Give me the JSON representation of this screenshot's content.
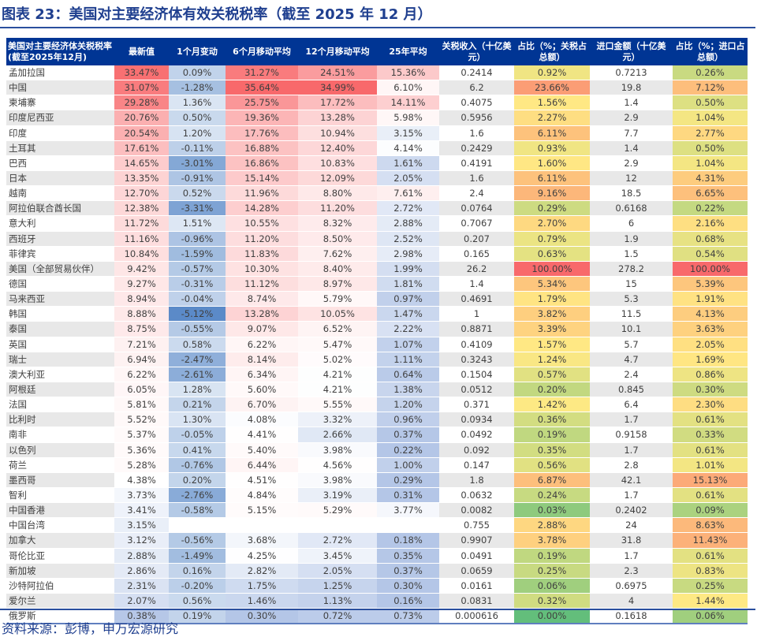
{
  "title": "图表 23：美国对主要经济体有效关税税率（截至 2025 年 12 月）",
  "source": "资料来源：彭博，申万宏源研究",
  "headers": [
    "美国对主要经济体关税税率(截至2025年12月)",
    "最新值",
    "1个月变动",
    "6个月移动平均",
    "12个月移动平均",
    "25年平均",
    "关税收入（十亿美元）",
    "占比（%；关税占总额）",
    "进口金额（十亿美元）",
    "占比（%；进口占总额）"
  ],
  "colors": {
    "header": "#003594",
    "red": "#f8696b",
    "blue": "#5b8ac8",
    "green": "#63be7b",
    "yellow": "#ffe984"
  },
  "rows": [
    [
      "孟加拉国",
      "33.47%",
      "0.09%",
      "31.27%",
      "24.51%",
      "15.36%",
      "0.2414",
      "0.92%",
      "0.7213",
      "0.26%"
    ],
    [
      "中国",
      "31.07%",
      "-1.28%",
      "35.64%",
      "34.99%",
      "6.10%",
      "6.2",
      "23.66%",
      "19.8",
      "7.12%"
    ],
    [
      "柬埔寨",
      "29.28%",
      "1.36%",
      "25.75%",
      "17.72%",
      "14.11%",
      "0.4075",
      "1.56%",
      "1.4",
      "0.50%"
    ],
    [
      "印度尼西亚",
      "20.76%",
      "0.50%",
      "19.36%",
      "13.28%",
      "5.98%",
      "0.5956",
      "2.27%",
      "2.9",
      "1.04%"
    ],
    [
      "印度",
      "20.54%",
      "1.20%",
      "17.76%",
      "10.94%",
      "3.15%",
      "1.6",
      "6.11%",
      "7.7",
      "2.77%"
    ],
    [
      "土耳其",
      "17.61%",
      "-0.11%",
      "16.88%",
      "12.40%",
      "4.14%",
      "0.2429",
      "0.93%",
      "1.4",
      "0.50%"
    ],
    [
      "巴西",
      "14.65%",
      "-3.01%",
      "16.86%",
      "10.83%",
      "1.61%",
      "0.4191",
      "1.60%",
      "2.9",
      "1.04%"
    ],
    [
      "日本",
      "13.35%",
      "-0.91%",
      "15.14%",
      "12.09%",
      "2.05%",
      "1.6",
      "6.11%",
      "12",
      "4.31%"
    ],
    [
      "越南",
      "12.70%",
      "0.52%",
      "11.96%",
      "8.80%",
      "7.61%",
      "2.4",
      "9.16%",
      "18.5",
      "6.65%"
    ],
    [
      "阿拉伯联合酋长国",
      "12.38%",
      "-3.31%",
      "14.28%",
      "11.20%",
      "2.72%",
      "0.0764",
      "0.29%",
      "0.6168",
      "0.22%"
    ],
    [
      "意大利",
      "11.72%",
      "1.51%",
      "10.55%",
      "8.32%",
      "2.88%",
      "0.7067",
      "2.70%",
      "6",
      "2.16%"
    ],
    [
      "西班牙",
      "11.16%",
      "-0.96%",
      "11.20%",
      "8.50%",
      "2.52%",
      "0.207",
      "0.79%",
      "1.9",
      "0.68%"
    ],
    [
      "菲律宾",
      "10.84%",
      "-1.59%",
      "11.83%",
      "7.62%",
      "2.98%",
      "0.165",
      "0.63%",
      "1.5",
      "0.54%"
    ],
    [
      "美国（全部贸易伙伴）",
      "9.42%",
      "-0.57%",
      "10.30%",
      "8.40%",
      "1.99%",
      "26.2",
      "100.00%",
      "278.2",
      "100.00%"
    ],
    [
      "德国",
      "9.27%",
      "-0.31%",
      "11.12%",
      "8.97%",
      "1.81%",
      "1.4",
      "5.34%",
      "15",
      "5.39%"
    ],
    [
      "马来西亚",
      "8.94%",
      "-0.04%",
      "8.74%",
      "5.79%",
      "0.97%",
      "0.4691",
      "1.79%",
      "5.3",
      "1.91%"
    ],
    [
      "韩国",
      "8.88%",
      "-5.12%",
      "13.28%",
      "10.05%",
      "1.47%",
      "1",
      "3.82%",
      "11.5",
      "4.13%"
    ],
    [
      "泰国",
      "8.75%",
      "-0.55%",
      "9.07%",
      "6.52%",
      "2.22%",
      "0.8871",
      "3.39%",
      "10.1",
      "3.63%"
    ],
    [
      "英国",
      "7.21%",
      "0.58%",
      "6.22%",
      "5.47%",
      "1.07%",
      "0.4109",
      "1.57%",
      "5.7",
      "2.05%"
    ],
    [
      "瑞士",
      "6.94%",
      "-2.47%",
      "8.14%",
      "5.02%",
      "1.11%",
      "0.3243",
      "1.24%",
      "4.7",
      "1.69%"
    ],
    [
      "澳大利亚",
      "6.22%",
      "-2.61%",
      "6.34%",
      "4.21%",
      "0.64%",
      "0.1504",
      "0.57%",
      "2.4",
      "0.86%"
    ],
    [
      "阿根廷",
      "6.05%",
      "1.28%",
      "5.60%",
      "4.21%",
      "1.38%",
      "0.0512",
      "0.20%",
      "0.845",
      "0.30%"
    ],
    [
      "法国",
      "5.81%",
      "0.21%",
      "6.70%",
      "5.55%",
      "1.20%",
      "0.371",
      "1.42%",
      "6.4",
      "2.30%"
    ],
    [
      "比利时",
      "5.52%",
      "1.30%",
      "4.08%",
      "3.32%",
      "0.96%",
      "0.0934",
      "0.36%",
      "1.7",
      "0.61%"
    ],
    [
      "南非",
      "5.37%",
      "-0.05%",
      "4.41%",
      "2.66%",
      "0.37%",
      "0.0492",
      "0.19%",
      "0.9158",
      "0.33%"
    ],
    [
      "以色列",
      "5.36%",
      "0.41%",
      "5.40%",
      "3.98%",
      "0.22%",
      "0.092",
      "0.35%",
      "1.7",
      "0.61%"
    ],
    [
      "荷兰",
      "5.28%",
      "-0.76%",
      "6.44%",
      "4.56%",
      "1.00%",
      "0.147",
      "0.56%",
      "2.8",
      "1.01%"
    ],
    [
      "墨西哥",
      "4.38%",
      "0.20%",
      "4.51%",
      "3.98%",
      "0.29%",
      "1.8",
      "6.87%",
      "42.1",
      "15.13%"
    ],
    [
      "智利",
      "3.73%",
      "-2.76%",
      "4.84%",
      "3.19%",
      "0.31%",
      "0.0632",
      "0.24%",
      "1.7",
      "0.61%"
    ],
    [
      "中国香港",
      "3.41%",
      "-0.58%",
      "5.15%",
      "5.29%",
      "3.77%",
      "0.0082",
      "0.03%",
      "0.2402",
      "0.09%"
    ],
    [
      "中国台湾",
      "3.15%",
      "",
      "",
      "",
      "",
      "0.755",
      "2.88%",
      "24",
      "8.63%"
    ],
    [
      "加拿大",
      "3.12%",
      "-0.56%",
      "3.68%",
      "2.72%",
      "0.18%",
      "0.9907",
      "3.78%",
      "31.8",
      "11.43%"
    ],
    [
      "哥伦比亚",
      "2.88%",
      "-1.49%",
      "4.25%",
      "3.45%",
      "0.35%",
      "0.0491",
      "0.19%",
      "1.7",
      "0.61%"
    ],
    [
      "新加坡",
      "2.86%",
      "0.16%",
      "2.82%",
      "2.05%",
      "0.37%",
      "0.0659",
      "0.25%",
      "2.3",
      "0.83%"
    ],
    [
      "沙特阿拉伯",
      "2.31%",
      "-0.20%",
      "1.75%",
      "1.25%",
      "0.30%",
      "0.0161",
      "0.06%",
      "0.6975",
      "0.25%"
    ],
    [
      "爱尔兰",
      "2.07%",
      "0.56%",
      "1.46%",
      "1.13%",
      "0.16%",
      "0.0831",
      "0.32%",
      "4",
      "1.44%"
    ],
    [
      "俄罗斯",
      "0.38%",
      "0.19%",
      "0.30%",
      "0.72%",
      "0.73%",
      "0.000616",
      "0.00%",
      "0.1618",
      "0.06%"
    ]
  ]
}
